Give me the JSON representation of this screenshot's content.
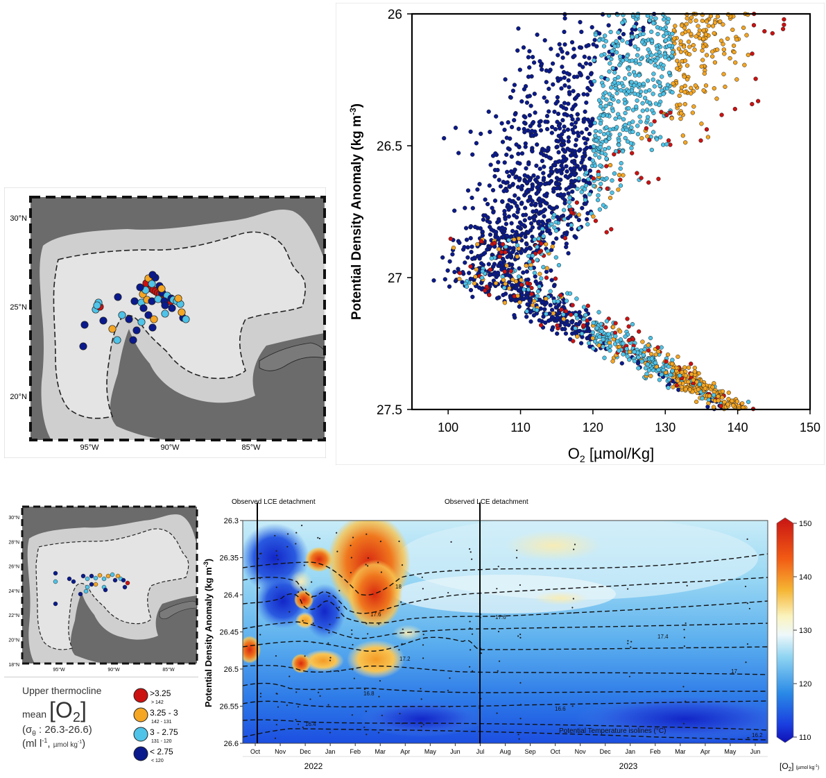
{
  "colors": {
    "c_high": "#cc1111",
    "c_mid_high": "#f5a623",
    "c_mid_low": "#4fc3e8",
    "c_low": "#0a1a8c",
    "land": "#6b6b6b",
    "shelf": "#d0d0d0",
    "deep": "#e4e4e4"
  },
  "map_top": {
    "lat_labels": [
      "30°N",
      "25°N",
      "20°N"
    ],
    "lon_labels": [
      "95°W",
      "90°W",
      "85°W"
    ]
  },
  "map_bottom": {
    "lat_labels": [
      "30°N",
      "28°N",
      "26°N",
      "24°N",
      "22°N",
      "20°N",
      "18°N"
    ],
    "lon_labels": [
      "95°W",
      "90°W",
      "85°W"
    ]
  },
  "chart_data": [
    {
      "type": "scatter",
      "xlabel_main": "O",
      "xlabel_sub": "2",
      "xlabel_rest": " [µmol/Kg]",
      "ylabel_main": "Potential Density Anomaly  (kg m",
      "ylabel_sup": "-3",
      "ylabel_end": ")",
      "xlim": [
        95,
        150
      ],
      "ylim": [
        26,
        27.5
      ],
      "y_inverted": true,
      "xticks": [
        "100",
        "110",
        "120",
        "130",
        "140",
        "150"
      ],
      "yticks": [
        "26",
        "26.5",
        "27",
        "27.5"
      ],
      "color_classes_umol": [
        ">142",
        "142-131",
        "131-120",
        "<120"
      ]
    },
    {
      "type": "heatmap",
      "ylabel_main": "Potential Density Anomaly  (kg m",
      "ylabel_sup": "-3",
      "ylabel_end": ")",
      "ylim": [
        26.3,
        26.6
      ],
      "y_inverted": true,
      "yticks": [
        "26.3",
        "26.35",
        "26.4",
        "26.45",
        "26.5",
        "26.55",
        "26.6"
      ],
      "months": [
        "Oct",
        "Nov",
        "Dec",
        "Jan",
        "Feb",
        "Mar",
        "Apr",
        "May",
        "Jun",
        "Jul",
        "Aug",
        "Sep",
        "Oct",
        "Nov",
        "Dec",
        "Jan",
        "Feb",
        "Mar",
        "Apr",
        "May",
        "Jun"
      ],
      "years": [
        "2022",
        "2023"
      ],
      "annotations": [
        "Observed LCE detachment",
        "Observed LCE detachment"
      ],
      "isoline_labels": [
        "18",
        "17.6",
        "17.6",
        "17.4",
        "17.2",
        "17",
        "16.8",
        "16.6",
        "16.4",
        "16.2"
      ],
      "isoline_caption": "Potential Temperature isolines (°C)",
      "colorbar": {
        "ticks": [
          "150",
          "140",
          "130",
          "120",
          "110"
        ],
        "label_main": "[O",
        "label_sub": "2",
        "label_end": "]",
        "label_units": "(µmol kg",
        "label_units_sup": "-1",
        "label_units_end": ")"
      }
    }
  ],
  "legend": {
    "title_line1": "Upper thermocline",
    "title_mean": "mean",
    "title_bracket_open": "[O",
    "title_sub": "2",
    "title_bracket_close": "]",
    "range_prefix": "(σ",
    "range_sub": "θ",
    "range_text": " : 26.3-26.6)",
    "units_main": "(ml l",
    "units_sup": "-1",
    "units_mid": ", ",
    "units_small": "µmol kg",
    "units_small_sup": "-1",
    "units_end": ")",
    "items": [
      {
        "label": ">3.25",
        "sub": "> 142",
        "color": "#cc1111"
      },
      {
        "label": "3.25 - 3",
        "sub": "142 - 131",
        "color": "#f5a623"
      },
      {
        "label": "3 - 2.75",
        "sub": "131 - 120",
        "color": "#4fc3e8"
      },
      {
        "label": "< 2.75",
        "sub": "< 120",
        "color": "#0a1a8c"
      }
    ]
  }
}
